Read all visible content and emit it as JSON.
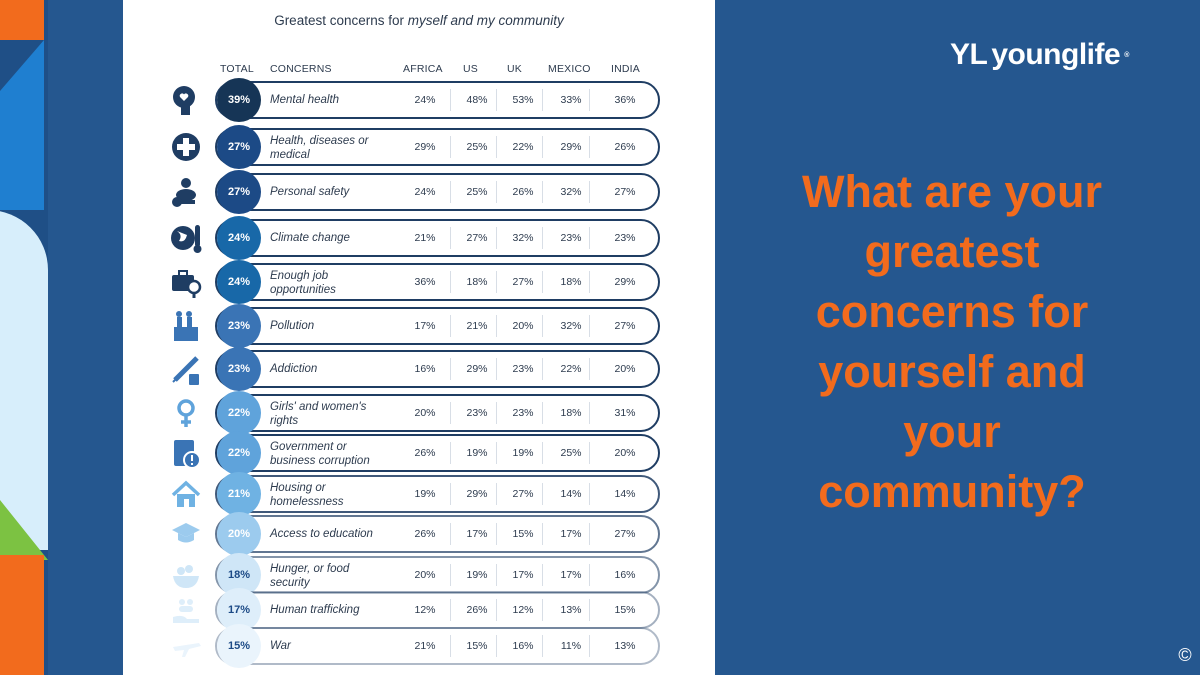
{
  "brand": {
    "logo_text": "younglife",
    "logo_mark": "YL",
    "trademark": "®"
  },
  "question": "What are your greatest concerns for yourself and your community?",
  "copyright_symbol": "©",
  "colors": {
    "background": "#25578f",
    "accent": "#f26b1d",
    "row_border": "#1f3d63"
  },
  "chart_data": {
    "type": "table",
    "title_plain": "Greatest concerns for ",
    "title_italic": "myself and my community",
    "columns": [
      "TOTAL",
      "CONCERNS",
      "AFRICA",
      "US",
      "UK",
      "MEXICO",
      "INDIA"
    ],
    "rows": [
      {
        "concern": "Mental health",
        "total": "39%",
        "values": [
          "24%",
          "48%",
          "53%",
          "33%",
          "36%"
        ],
        "icon": "brain-heart-icon",
        "color": "#163556",
        "opacity": 1.0
      },
      {
        "concern": "Health, diseases or medical",
        "total": "27%",
        "values": [
          "29%",
          "25%",
          "22%",
          "29%",
          "26%"
        ],
        "icon": "medical-cross-icon",
        "color": "#1c4a86",
        "opacity": 1.0
      },
      {
        "concern": "Personal safety",
        "total": "27%",
        "values": [
          "24%",
          "25%",
          "26%",
          "32%",
          "27%"
        ],
        "icon": "safety-key-icon",
        "color": "#1c4a86",
        "opacity": 1.0
      },
      {
        "concern": "Climate change",
        "total": "24%",
        "values": [
          "21%",
          "27%",
          "32%",
          "23%",
          "23%"
        ],
        "icon": "globe-thermometer-icon",
        "color": "#1868a8",
        "opacity": 1.0
      },
      {
        "concern": "Enough job opportunities",
        "total": "24%",
        "values": [
          "36%",
          "18%",
          "27%",
          "18%",
          "29%"
        ],
        "icon": "briefcase-search-icon",
        "color": "#1868a8",
        "opacity": 1.0
      },
      {
        "concern": "Pollution",
        "total": "23%",
        "values": [
          "17%",
          "21%",
          "20%",
          "32%",
          "27%"
        ],
        "icon": "factory-icon",
        "color": "#3a74b5",
        "opacity": 1.0
      },
      {
        "concern": "Addiction",
        "total": "23%",
        "values": [
          "16%",
          "29%",
          "23%",
          "22%",
          "20%"
        ],
        "icon": "syringe-bottle-icon",
        "color": "#3a74b5",
        "opacity": 1.0
      },
      {
        "concern": "Girls' and women's rights",
        "total": "22%",
        "values": [
          "20%",
          "23%",
          "23%",
          "18%",
          "31%"
        ],
        "icon": "female-symbol-icon",
        "color": "#5fa3db",
        "opacity": 1.0
      },
      {
        "concern": "Government or business corruption",
        "total": "22%",
        "values": [
          "26%",
          "19%",
          "19%",
          "25%",
          "20%"
        ],
        "icon": "building-alert-icon",
        "color": "#5fa3db",
        "opacity": 1.0
      },
      {
        "concern": "Housing or homelessness",
        "total": "21%",
        "values": [
          "19%",
          "29%",
          "27%",
          "14%",
          "14%"
        ],
        "icon": "house-icon",
        "color": "#6fb2e3",
        "opacity": 0.85
      },
      {
        "concern": "Access to education",
        "total": "20%",
        "values": [
          "26%",
          "17%",
          "15%",
          "17%",
          "27%"
        ],
        "icon": "graduation-cap-icon",
        "color": "#9ccbee",
        "opacity": 0.7
      },
      {
        "concern": "Hunger, or food security",
        "total": "18%",
        "values": [
          "20%",
          "19%",
          "17%",
          "17%",
          "16%"
        ],
        "icon": "food-bowl-icon",
        "color": "#cfe6f7",
        "opacity": 0.55
      },
      {
        "concern": "Human trafficking",
        "total": "17%",
        "values": [
          "12%",
          "26%",
          "12%",
          "13%",
          "15%"
        ],
        "icon": "hand-people-icon",
        "color": "#deeefa",
        "opacity": 0.4
      },
      {
        "concern": "War",
        "total": "15%",
        "values": [
          "21%",
          "15%",
          "16%",
          "11%",
          "13%"
        ],
        "icon": "plane-icon",
        "color": "#eaf4fc",
        "opacity": 0.35
      }
    ]
  }
}
